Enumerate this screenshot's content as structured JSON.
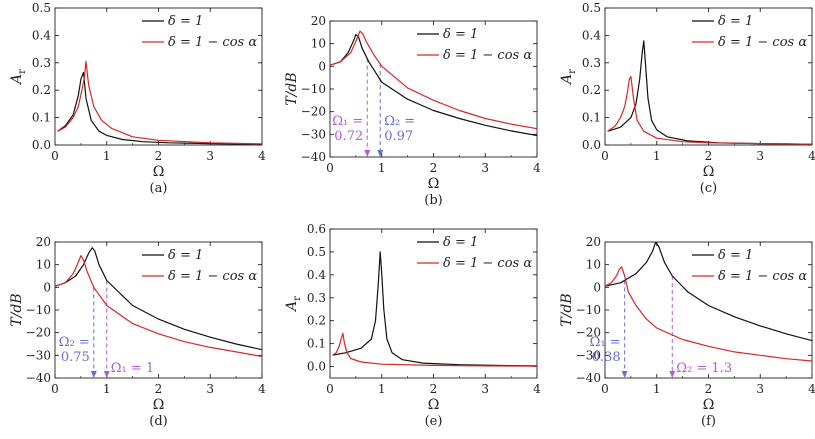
{
  "colors": {
    "black": "#111111",
    "red": "#d62728",
    "blue": "#6a6cd6",
    "purple": "#b45ad2"
  },
  "legend": [
    "δ = 1",
    "δ = 1 − cos α"
  ],
  "chart_data": [
    {
      "id": "a",
      "type": "line",
      "caption": "(a)",
      "xlabel": "Ω",
      "ylabel": "A_r",
      "xlim": [
        0,
        4
      ],
      "ylim": [
        0,
        0.5
      ],
      "xticks": [
        "0",
        "1",
        "2",
        "3",
        "4"
      ],
      "yticks": [
        "0.0",
        "0.1",
        "0.2",
        "0.3",
        "0.4",
        "0.5"
      ],
      "series": [
        {
          "name": "δ = 1",
          "color": "black",
          "x": [
            0.05,
            0.2,
            0.35,
            0.45,
            0.5,
            0.55,
            0.6,
            0.7,
            0.85,
            1.0,
            1.3,
            1.7,
            2.2,
            3.0,
            4.0
          ],
          "y": [
            0.05,
            0.07,
            0.11,
            0.18,
            0.24,
            0.265,
            0.17,
            0.09,
            0.05,
            0.035,
            0.02,
            0.012,
            0.008,
            0.005,
            0.003
          ]
        },
        {
          "name": "δ = 1 − cos α",
          "color": "red",
          "x": [
            0.05,
            0.2,
            0.35,
            0.45,
            0.52,
            0.57,
            0.6,
            0.65,
            0.75,
            0.9,
            1.1,
            1.5,
            2.0,
            3.0,
            4.0
          ],
          "y": [
            0.05,
            0.065,
            0.1,
            0.14,
            0.2,
            0.25,
            0.305,
            0.22,
            0.14,
            0.09,
            0.06,
            0.03,
            0.017,
            0.008,
            0.004
          ]
        }
      ]
    },
    {
      "id": "b",
      "type": "line",
      "caption": "(b)",
      "xlabel": "Ω",
      "ylabel": "T/dB",
      "xlim": [
        0,
        4
      ],
      "ylim": [
        -40,
        20
      ],
      "xticks": [
        "0",
        "1",
        "2",
        "3",
        "4"
      ],
      "yticks": [
        "−40",
        "−30",
        "−20",
        "−10",
        "0",
        "10",
        "20"
      ],
      "series": [
        {
          "name": "δ = 1",
          "color": "black",
          "x": [
            0,
            0.2,
            0.35,
            0.45,
            0.5,
            0.55,
            0.62,
            0.75,
            1.0,
            1.5,
            2.0,
            2.5,
            3.0,
            3.5,
            4.0
          ],
          "y": [
            0.5,
            2,
            6,
            11,
            14,
            13,
            8,
            2,
            -7,
            -14.5,
            -19.5,
            -23,
            -26,
            -28.5,
            -30.5
          ]
        },
        {
          "name": "δ = 1 − cos α",
          "color": "red",
          "x": [
            0,
            0.2,
            0.4,
            0.5,
            0.58,
            0.63,
            0.7,
            0.85,
            1.0,
            1.5,
            2.0,
            2.5,
            3.0,
            3.5,
            4.0
          ],
          "y": [
            0.5,
            2,
            6,
            11,
            15.5,
            14.5,
            11,
            5,
            0,
            -9.5,
            -15,
            -19.5,
            -23,
            -25.5,
            -27.5
          ]
        }
      ],
      "annotations": [
        {
          "text": [
            "Ω₁ =",
            "0.72"
          ],
          "x": 0.72,
          "color": "purple"
        },
        {
          "text": [
            "Ω₂ =",
            "0.97"
          ],
          "x": 0.97,
          "color": "blue"
        }
      ]
    },
    {
      "id": "c",
      "type": "line",
      "caption": "(c)",
      "xlabel": "Ω",
      "ylabel": "A_r",
      "xlim": [
        0,
        4
      ],
      "ylim": [
        0,
        0.5
      ],
      "xticks": [
        "0",
        "1",
        "2",
        "3",
        "4"
      ],
      "yticks": [
        "0.0",
        "0.1",
        "0.2",
        "0.3",
        "0.4",
        "0.5"
      ],
      "series": [
        {
          "name": "δ = 1",
          "color": "black",
          "x": [
            0.05,
            0.3,
            0.5,
            0.6,
            0.67,
            0.72,
            0.75,
            0.78,
            0.83,
            0.9,
            1.0,
            1.2,
            1.6,
            2.2,
            3.0,
            4.0
          ],
          "y": [
            0.05,
            0.065,
            0.1,
            0.15,
            0.24,
            0.34,
            0.38,
            0.3,
            0.17,
            0.09,
            0.055,
            0.03,
            0.015,
            0.008,
            0.005,
            0.003
          ]
        },
        {
          "name": "δ = 1 − cos α",
          "color": "red",
          "x": [
            0.05,
            0.2,
            0.3,
            0.38,
            0.43,
            0.47,
            0.5,
            0.55,
            0.62,
            0.75,
            1.0,
            1.5,
            2.0,
            3.0,
            4.0
          ],
          "y": [
            0.05,
            0.07,
            0.1,
            0.14,
            0.19,
            0.24,
            0.25,
            0.17,
            0.09,
            0.05,
            0.025,
            0.012,
            0.008,
            0.005,
            0.003
          ]
        }
      ]
    },
    {
      "id": "d",
      "type": "line",
      "caption": "(d)",
      "xlabel": "Ω",
      "ylabel": "T/dB",
      "xlim": [
        0,
        4
      ],
      "ylim": [
        -40,
        20
      ],
      "xticks": [
        "0",
        "1",
        "2",
        "3",
        "4"
      ],
      "yticks": [
        "−40",
        "−30",
        "−20",
        "−10",
        "0",
        "10",
        "20"
      ],
      "series": [
        {
          "name": "δ = 1",
          "color": "black",
          "x": [
            0,
            0.2,
            0.4,
            0.55,
            0.65,
            0.72,
            0.77,
            0.85,
            1.0,
            1.5,
            2.0,
            2.5,
            3.0,
            3.5,
            4.0
          ],
          "y": [
            0.5,
            2,
            5,
            10,
            15,
            17.5,
            16,
            10,
            3,
            -8,
            -14,
            -18.5,
            -22,
            -25,
            -27.5
          ]
        },
        {
          "name": "δ = 1 − cos α",
          "color": "red",
          "x": [
            0,
            0.2,
            0.35,
            0.45,
            0.5,
            0.55,
            0.62,
            0.75,
            1.0,
            1.5,
            2.0,
            2.5,
            3.0,
            3.5,
            4.0
          ],
          "y": [
            0.5,
            2,
            6,
            11,
            14,
            12,
            7,
            0,
            -8,
            -16,
            -20.5,
            -24,
            -26.5,
            -28.5,
            -30.5
          ]
        }
      ],
      "annotations": [
        {
          "text": [
            "Ω₂ =",
            "0.75"
          ],
          "x": 0.75,
          "color": "blue"
        },
        {
          "text": [
            "Ω₁ = 1"
          ],
          "x": 1.0,
          "color": "purple"
        }
      ]
    },
    {
      "id": "e",
      "type": "line",
      "caption": "(e)",
      "xlabel": "Ω",
      "ylabel": "A_r",
      "xlim": [
        0,
        4
      ],
      "ylim": [
        -0.05,
        0.6
      ],
      "xticks": [
        "0",
        "1",
        "2",
        "3",
        "4"
      ],
      "yticks": [
        "0.0",
        "0.1",
        "0.2",
        "0.3",
        "0.4",
        "0.5",
        "0.6"
      ],
      "series": [
        {
          "name": "δ = 1",
          "color": "black",
          "x": [
            0.05,
            0.3,
            0.6,
            0.8,
            0.88,
            0.93,
            0.97,
            1.0,
            1.04,
            1.1,
            1.2,
            1.4,
            1.8,
            2.5,
            3.2,
            4.0
          ],
          "y": [
            0.05,
            0.06,
            0.08,
            0.12,
            0.2,
            0.35,
            0.5,
            0.4,
            0.25,
            0.12,
            0.06,
            0.03,
            0.015,
            0.008,
            0.005,
            0.003
          ]
        },
        {
          "name": "δ = 1 − cos α",
          "color": "red",
          "x": [
            0.05,
            0.12,
            0.18,
            0.22,
            0.25,
            0.28,
            0.33,
            0.4,
            0.6,
            1.0,
            2.0,
            3.0,
            4.0
          ],
          "y": [
            0.05,
            0.06,
            0.09,
            0.125,
            0.145,
            0.1,
            0.06,
            0.035,
            0.02,
            0.01,
            0.005,
            0.003,
            0.002
          ]
        }
      ]
    },
    {
      "id": "f",
      "type": "line",
      "caption": "(f)",
      "xlabel": "Ω",
      "ylabel": "T/dB",
      "xlim": [
        0,
        4
      ],
      "ylim": [
        -40,
        20
      ],
      "xticks": [
        "0",
        "1",
        "2",
        "3",
        "4"
      ],
      "yticks": [
        "−40",
        "−30",
        "−20",
        "−10",
        "0",
        "10",
        "20"
      ],
      "series": [
        {
          "name": "δ = 1",
          "color": "black",
          "x": [
            0,
            0.3,
            0.6,
            0.8,
            0.92,
            0.98,
            1.04,
            1.15,
            1.3,
            1.6,
            2.0,
            2.5,
            3.0,
            3.5,
            4.0
          ],
          "y": [
            0.5,
            2,
            6,
            11,
            16,
            20,
            18,
            11,
            5,
            -2,
            -8,
            -13,
            -17,
            -20.5,
            -23.5
          ]
        },
        {
          "name": "δ = 1 − cos α",
          "color": "red",
          "x": [
            0,
            0.12,
            0.22,
            0.28,
            0.32,
            0.38,
            0.45,
            0.6,
            0.8,
            1.0,
            1.5,
            2.0,
            2.5,
            3.0,
            3.5,
            4.0
          ],
          "y": [
            0.5,
            2,
            5,
            8,
            9,
            5,
            -2,
            -8,
            -14,
            -18,
            -23,
            -26,
            -28.5,
            -30,
            -31.5,
            -32.5
          ]
        }
      ],
      "annotations": [
        {
          "text": [
            "Ω₁ =",
            "0.38"
          ],
          "x": 0.38,
          "color": "blue"
        },
        {
          "text": [
            "Ω₂ = 1.3"
          ],
          "x": 1.3,
          "color": "purple"
        }
      ]
    }
  ]
}
